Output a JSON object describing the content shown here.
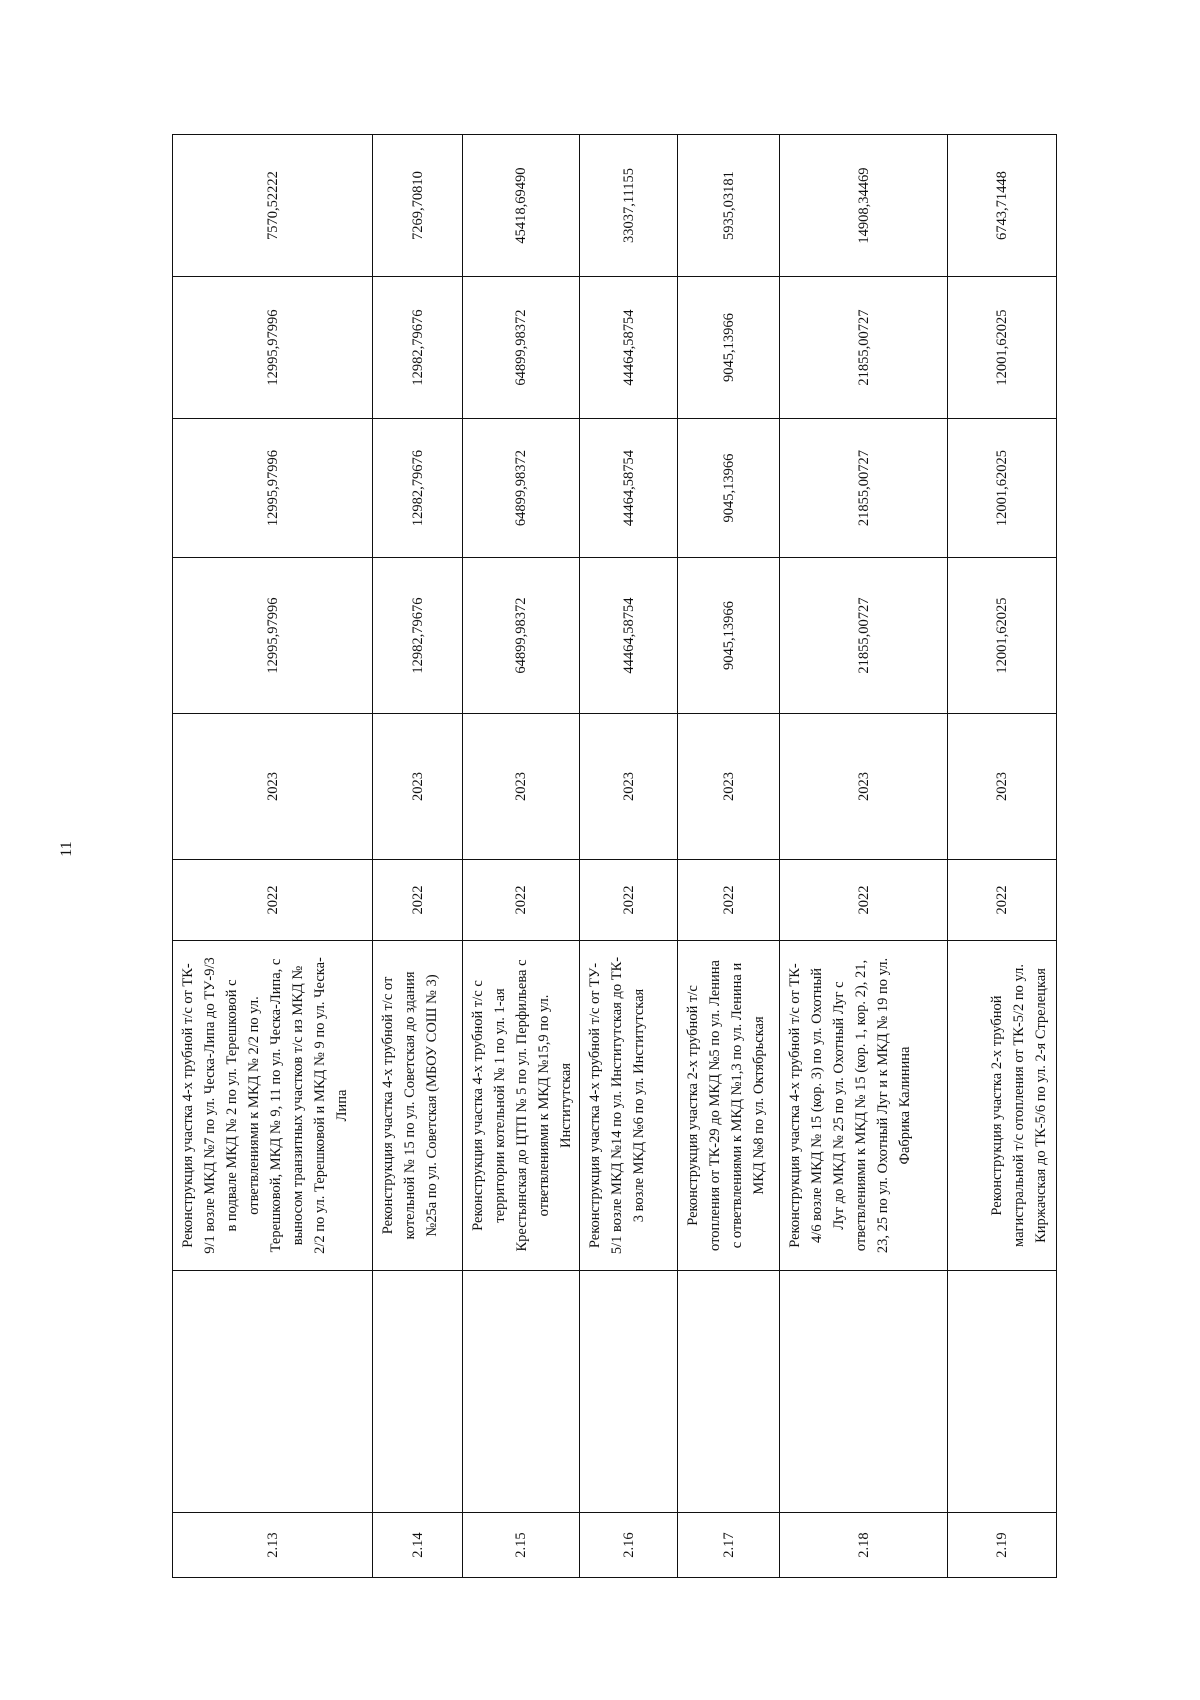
{
  "page_number": "11",
  "table": {
    "rows": [
      {
        "num": "2.13",
        "note": "",
        "desc": "Реконструкция участка 4-х трубной т/с от ТК-\n9/1 возле МКД №7 по ул. Ческа-Липа до ТУ-9/3\nв подвале МКД № 2 по ул. Терешковой с\nответвлениями к МКД № 2/2 по ул.\nТерешковой, МКД № 9, 11 по ул. Ческа-Липа, с\nвыносом транзитных участков т/с из МКД №\n2/2 по ул. Терешковой и МКД № 9 по ул. Ческа-\nЛипа",
        "start": "2022",
        "end": "2023",
        "v1": "12995,97996",
        "v2": "12995,97996",
        "v3": "12995,97996",
        "v4": "7570,52222"
      },
      {
        "num": "2.14",
        "note": "",
        "desc": "Реконструкция участка 4-х трубной т/с от\nкотельной № 15 по ул. Советская до здания\n№25а по ул. Советская (МБОУ СОШ № 3)",
        "start": "2022",
        "end": "2023",
        "v1": "12982,79676",
        "v2": "12982,79676",
        "v3": "12982,79676",
        "v4": "7269,70810"
      },
      {
        "num": "2.15",
        "note": "",
        "desc": "Реконструкция участка 4-х трубной т/с с\nтерритории котельной № 1 по ул. 1-ая\nКрестьянская до ЦТП № 5 по ул. Перфильева с\nответвлениями к МКД №15,9 по ул.\nИнститутская",
        "start": "2022",
        "end": "2023",
        "v1": "64899,98372",
        "v2": "64899,98372",
        "v3": "64899,98372",
        "v4": "45418,69490"
      },
      {
        "num": "2.16",
        "note": "",
        "desc": "Реконструкция участка 4-х трубной т/с от ТУ-\n5/1 возле МКД №14 по ул. Институтская до ТК-\n3 возле МКД №6 по ул. Институтская",
        "start": "2022",
        "end": "2023",
        "v1": "44464,58754",
        "v2": "44464,58754",
        "v3": "44464,58754",
        "v4": "33037,11155"
      },
      {
        "num": "2.17",
        "note": "",
        "desc": "Реконструкция участка 2-х трубной т/с\nотопления от ТК-29 до МКД №5 по ул. Ленина\nс ответвлениями к МКД №1,3 по ул. Ленина и\nМКД №8 по ул. Октябрьская",
        "start": "2022",
        "end": "2023",
        "v1": "9045,13966",
        "v2": "9045,13966",
        "v3": "9045,13966",
        "v4": "5935,03181"
      },
      {
        "num": "2.18",
        "note": "",
        "desc": "Реконструкция участка 4-х трубной т/с от ТК-\n4/6 возле МКД № 15 (кор. 3) по ул. Охотный\nЛуг до МКД № 25 по ул. Охотный Луг с\nответвлениями к МКД № 15 (кор. 1, кор. 2), 21,\n23, 25 по ул. Охотный Луг и к МКД № 19 по ул.\nФабрика Калинина",
        "start": "2022",
        "end": "2023",
        "v1": "21855,00727",
        "v2": "21855,00727",
        "v3": "21855,00727",
        "v4": "14908,34469"
      },
      {
        "num": "2.19",
        "note": "",
        "desc": "Реконструкция участка  2-х трубной\nмагистральной т/с отопления от ТК-5/2 по ул.\nКиржачская до ТК-5/6 по ул.   2-я Стрелецкая",
        "start": "2022",
        "end": "2023",
        "v1": "12001,62025",
        "v2": "12001,62025",
        "v3": "12001,62025",
        "v4": "6743,71448"
      }
    ]
  }
}
